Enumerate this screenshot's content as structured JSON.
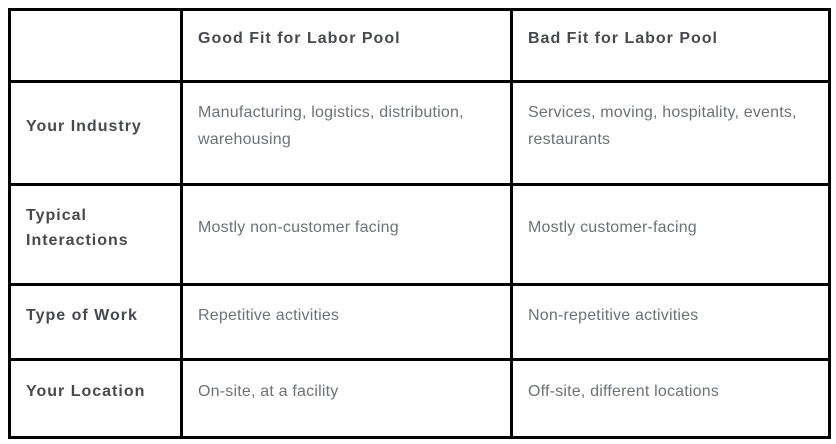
{
  "table": {
    "columns": {
      "corner": "",
      "good": "Good Fit for Labor Pool",
      "bad": "Bad Fit for Labor Pool"
    },
    "rows": [
      {
        "label": "Your Industry",
        "good": "Manufacturing, logistics, distribution, warehousing",
        "bad": "Services, moving, hospitality, events, restaurants"
      },
      {
        "label": "Typical Interactions",
        "good": "Mostly non-customer facing",
        "bad": "Mostly customer-facing"
      },
      {
        "label": "Type of Work",
        "good": "Repetitive activities",
        "bad": "Non-repetitive activities"
      },
      {
        "label": "Your Location",
        "good": "On-site, at a facility",
        "bad": "Off-site, different locations"
      }
    ],
    "colors": {
      "border": "#000000",
      "header_text": "#47494c",
      "body_text": "#6e7176",
      "background": "#ffffff"
    }
  }
}
